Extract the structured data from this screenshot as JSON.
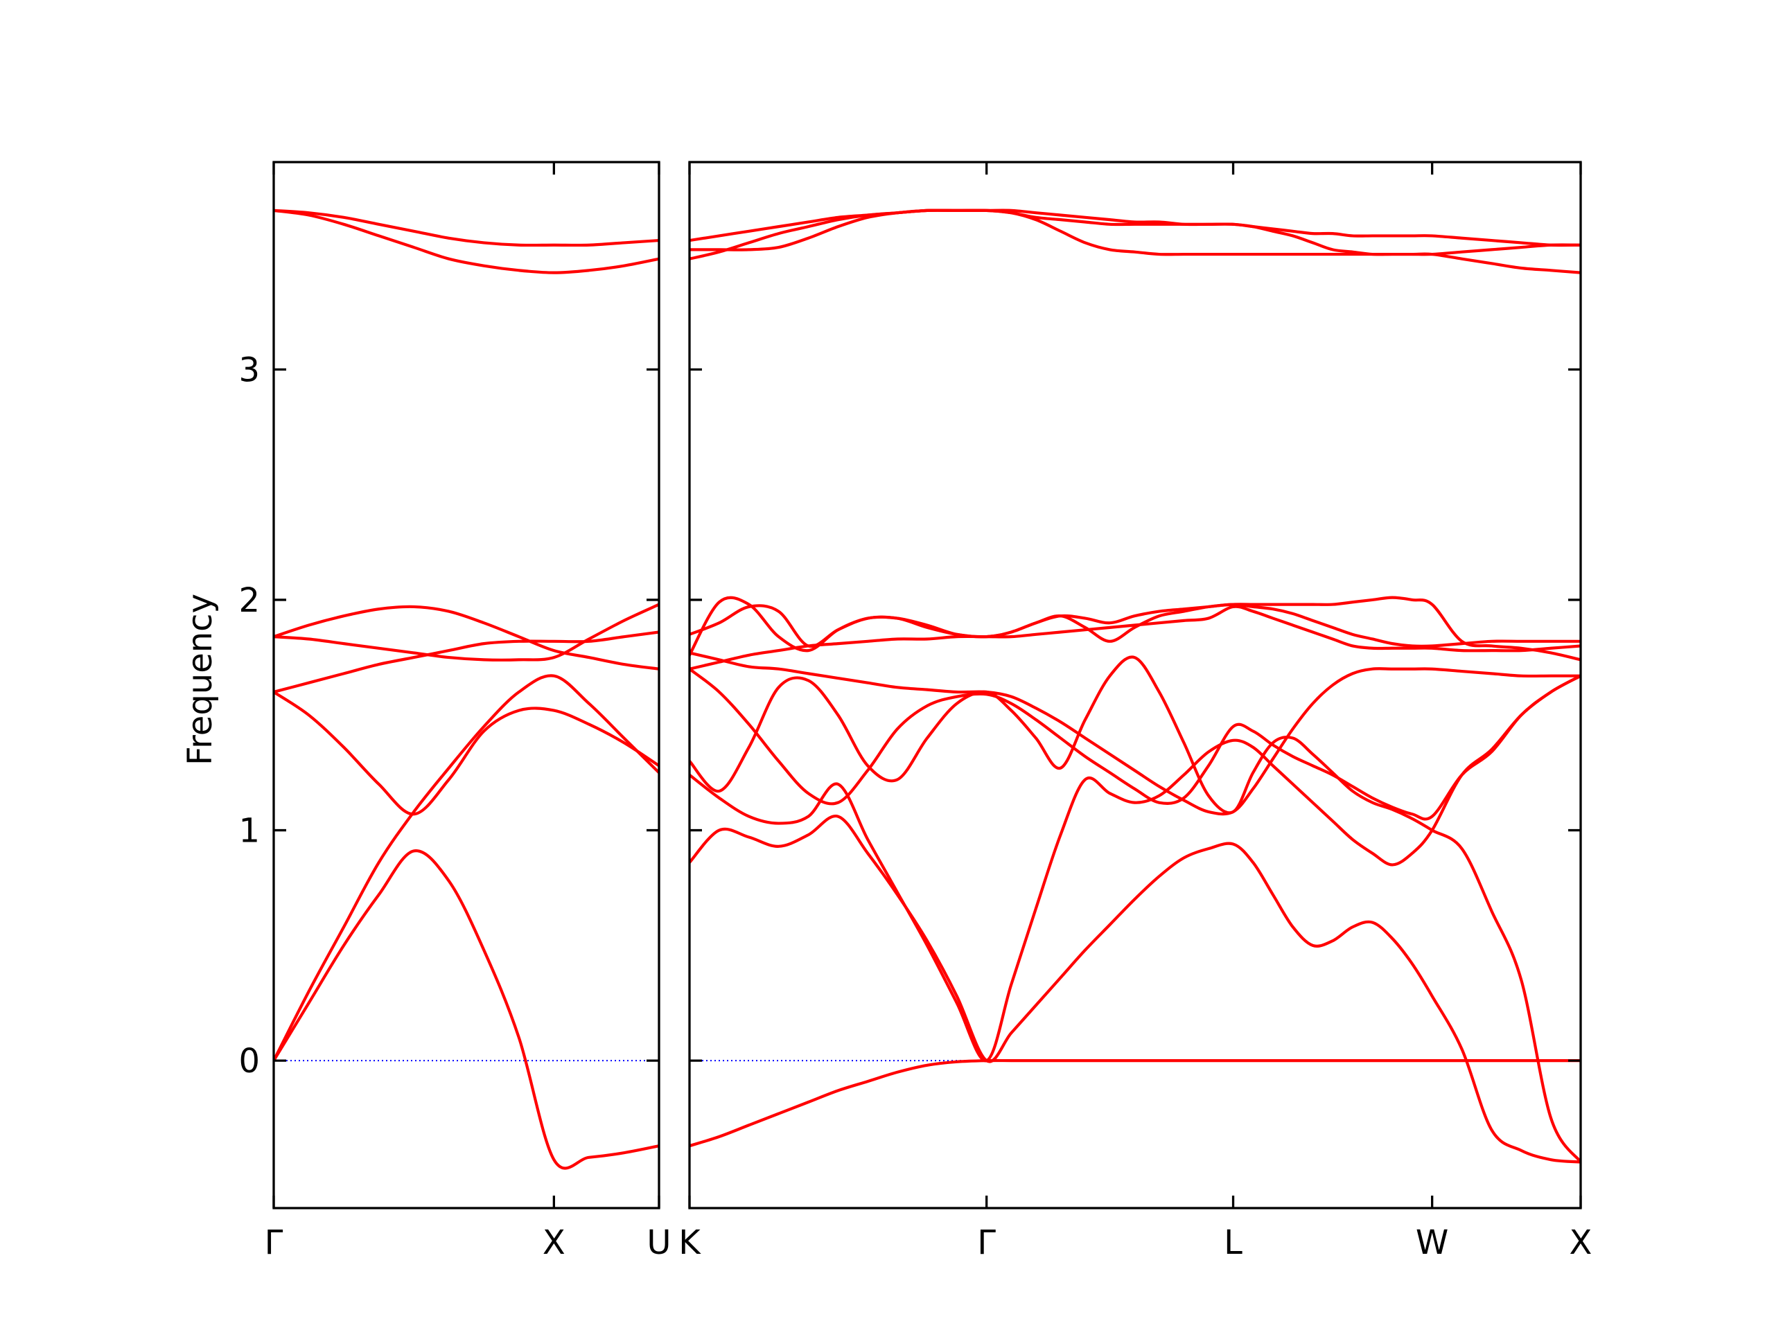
{
  "chart_data": {
    "type": "line",
    "title": "",
    "xlabel": "",
    "ylabel": "Frequency",
    "ylim": [
      -0.64,
      3.9
    ],
    "yticks": [
      0,
      1,
      2,
      3
    ],
    "ytick_labels": [
      "0",
      "1",
      "2",
      "3"
    ],
    "grid": false,
    "colors": {
      "bands": "#ff0000",
      "zero_line": "#0000ff",
      "axes": "#000000"
    },
    "panels": [
      {
        "name": "panel-1",
        "xlim": [
          0,
          1.375
        ],
        "xticks": [
          0,
          1.0,
          1.375
        ],
        "xtick_labels": [
          "Γ",
          "X",
          "U"
        ],
        "x": [
          0,
          0.125,
          0.25,
          0.375,
          0.5,
          0.625,
          0.75,
          0.875,
          1.0,
          1.125,
          1.25,
          1.375
        ],
        "series": [
          {
            "values": [
              0.0,
              0.25,
              0.5,
              0.72,
              0.91,
              0.78,
              0.48,
              0.1,
              -0.43,
              -0.42,
              -0.4,
              -0.37
            ]
          },
          {
            "values": [
              0.0,
              0.3,
              0.58,
              0.86,
              1.08,
              1.27,
              1.45,
              1.6,
              1.67,
              1.55,
              1.4,
              1.25
            ]
          },
          {
            "values": [
              1.6,
              1.5,
              1.36,
              1.2,
              1.07,
              1.22,
              1.43,
              1.52,
              1.52,
              1.46,
              1.38,
              1.28
            ]
          },
          {
            "values": [
              1.6,
              1.64,
              1.68,
              1.72,
              1.75,
              1.78,
              1.81,
              1.82,
              1.82,
              1.82,
              1.84,
              1.86
            ]
          },
          {
            "values": [
              1.84,
              1.83,
              1.81,
              1.79,
              1.77,
              1.75,
              1.74,
              1.74,
              1.75,
              1.83,
              1.91,
              1.98
            ]
          },
          {
            "values": [
              1.84,
              1.89,
              1.93,
              1.96,
              1.97,
              1.95,
              1.9,
              1.84,
              1.78,
              1.75,
              1.72,
              1.7
            ]
          },
          {
            "values": [
              3.69,
              3.67,
              3.63,
              3.58,
              3.53,
              3.48,
              3.45,
              3.43,
              3.42,
              3.43,
              3.45,
              3.48
            ]
          },
          {
            "values": [
              3.69,
              3.68,
              3.66,
              3.63,
              3.6,
              3.57,
              3.55,
              3.54,
              3.54,
              3.54,
              3.55,
              3.56
            ]
          }
        ]
      },
      {
        "name": "panel-2",
        "xlim": [
          0,
          3.18
        ],
        "xticks": [
          0,
          1.06,
          1.94,
          2.65,
          3.18
        ],
        "xtick_labels": [
          "K",
          "Γ",
          "L",
          "W",
          "X"
        ],
        "x": [
          0,
          0.106,
          0.212,
          0.318,
          0.424,
          0.53,
          0.636,
          0.742,
          0.848,
          0.954,
          1.06,
          1.148,
          1.236,
          1.324,
          1.412,
          1.5,
          1.588,
          1.676,
          1.764,
          1.852,
          1.94,
          2.011,
          2.082,
          2.153,
          2.224,
          2.295,
          2.366,
          2.437,
          2.508,
          2.579,
          2.65,
          2.756,
          2.862,
          2.968,
          3.074,
          3.18
        ],
        "series": [
          {
            "values": [
              -0.37,
              -0.33,
              -0.28,
              -0.23,
              -0.18,
              -0.13,
              -0.09,
              -0.05,
              -0.02,
              -0.005,
              0.0,
              0.0,
              0.0,
              0.0,
              0.0,
              0.0,
              0.0,
              0.0,
              0.0,
              0.0,
              0.0,
              0.0,
              0.0,
              0.0,
              0.0,
              0.0,
              0.0,
              0.0,
              0.0,
              0.0,
              0.0,
              0.0,
              0.0,
              0.0,
              0.0,
              0.0
            ]
          },
          {
            "values": [
              0.86,
              1.0,
              0.97,
              0.93,
              0.98,
              1.06,
              0.9,
              0.72,
              0.52,
              0.28,
              0.0,
              0.12,
              0.24,
              0.36,
              0.48,
              0.59,
              0.7,
              0.8,
              0.88,
              0.92,
              0.94,
              0.86,
              0.72,
              0.58,
              0.5,
              0.52,
              0.58,
              0.6,
              0.53,
              0.42,
              0.28,
              0.05,
              -0.3,
              -0.39,
              -0.43,
              -0.44
            ]
          },
          {
            "values": [
              1.24,
              1.14,
              1.06,
              1.03,
              1.06,
              1.2,
              0.96,
              0.73,
              0.5,
              0.25,
              0.0,
              0.33,
              0.66,
              0.98,
              1.22,
              1.16,
              1.12,
              1.15,
              1.24,
              1.34,
              1.39,
              1.36,
              1.28,
              1.2,
              1.12,
              1.04,
              0.96,
              0.9,
              0.85,
              0.9,
              1.0,
              1.24,
              1.35,
              1.5,
              1.6,
              1.67
            ]
          },
          {
            "values": [
              1.3,
              1.17,
              1.36,
              1.62,
              1.65,
              1.5,
              1.28,
              1.22,
              1.4,
              1.55,
              1.6,
              1.52,
              1.4,
              1.27,
              1.48,
              1.67,
              1.75,
              1.6,
              1.38,
              1.15,
              1.08,
              1.25,
              1.38,
              1.4,
              1.33,
              1.25,
              1.17,
              1.12,
              1.09,
              1.05,
              1.0,
              0.92,
              0.65,
              0.35,
              -0.25,
              -0.44
            ]
          },
          {
            "values": [
              1.7,
              1.6,
              1.46,
              1.3,
              1.16,
              1.12,
              1.26,
              1.44,
              1.54,
              1.58,
              1.59,
              1.55,
              1.48,
              1.4,
              1.32,
              1.25,
              1.18,
              1.12,
              1.14,
              1.28,
              1.45,
              1.43,
              1.37,
              1.32,
              1.28,
              1.24,
              1.19,
              1.14,
              1.1,
              1.07,
              1.06,
              1.24,
              1.34,
              1.5,
              1.6,
              1.67
            ]
          },
          {
            "values": [
              1.77,
              1.74,
              1.71,
              1.7,
              1.68,
              1.66,
              1.64,
              1.62,
              1.61,
              1.6,
              1.6,
              1.58,
              1.53,
              1.47,
              1.4,
              1.33,
              1.26,
              1.19,
              1.13,
              1.08,
              1.08,
              1.18,
              1.31,
              1.44,
              1.55,
              1.63,
              1.68,
              1.7,
              1.7,
              1.7,
              1.7,
              1.69,
              1.68,
              1.67,
              1.67,
              1.67
            ]
          },
          {
            "values": [
              1.7,
              1.73,
              1.76,
              1.78,
              1.8,
              1.81,
              1.82,
              1.83,
              1.83,
              1.84,
              1.84,
              1.84,
              1.85,
              1.86,
              1.87,
              1.88,
              1.89,
              1.9,
              1.91,
              1.92,
              1.97,
              1.95,
              1.92,
              1.89,
              1.86,
              1.83,
              1.8,
              1.79,
              1.79,
              1.79,
              1.79,
              1.78,
              1.78,
              1.78,
              1.79,
              1.8
            ]
          },
          {
            "values": [
              1.85,
              1.9,
              1.97,
              1.95,
              1.8,
              1.87,
              1.92,
              1.92,
              1.88,
              1.85,
              1.84,
              1.86,
              1.9,
              1.93,
              1.88,
              1.82,
              1.88,
              1.93,
              1.95,
              1.97,
              1.98,
              1.98,
              1.98,
              1.98,
              1.98,
              1.98,
              1.99,
              2.0,
              2.01,
              2.0,
              1.98,
              1.82,
              1.8,
              1.79,
              1.77,
              1.74
            ]
          },
          {
            "values": [
              1.76,
              1.99,
              1.98,
              1.84,
              1.78,
              1.87,
              1.92,
              1.92,
              1.89,
              1.85,
              1.84,
              1.86,
              1.9,
              1.93,
              1.92,
              1.9,
              1.93,
              1.95,
              1.96,
              1.97,
              1.98,
              1.97,
              1.96,
              1.94,
              1.91,
              1.88,
              1.85,
              1.83,
              1.81,
              1.8,
              1.8,
              1.81,
              1.82,
              1.82,
              1.82,
              1.82
            ]
          },
          {
            "values": [
              3.48,
              3.51,
              3.55,
              3.59,
              3.62,
              3.65,
              3.67,
              3.68,
              3.69,
              3.69,
              3.69,
              3.68,
              3.65,
              3.6,
              3.55,
              3.52,
              3.51,
              3.5,
              3.5,
              3.5,
              3.5,
              3.5,
              3.5,
              3.5,
              3.5,
              3.5,
              3.5,
              3.5,
              3.5,
              3.5,
              3.5,
              3.48,
              3.46,
              3.44,
              3.43,
              3.42
            ]
          },
          {
            "values": [
              3.52,
              3.52,
              3.52,
              3.53,
              3.57,
              3.62,
              3.66,
              3.68,
              3.69,
              3.69,
              3.69,
              3.68,
              3.66,
              3.65,
              3.64,
              3.63,
              3.63,
              3.63,
              3.63,
              3.63,
              3.63,
              3.62,
              3.6,
              3.58,
              3.55,
              3.52,
              3.51,
              3.5,
              3.5,
              3.5,
              3.5,
              3.51,
              3.52,
              3.53,
              3.54,
              3.54
            ]
          },
          {
            "values": [
              3.56,
              3.58,
              3.6,
              3.62,
              3.64,
              3.66,
              3.67,
              3.68,
              3.69,
              3.69,
              3.69,
              3.69,
              3.68,
              3.67,
              3.66,
              3.65,
              3.64,
              3.64,
              3.63,
              3.63,
              3.63,
              3.62,
              3.61,
              3.6,
              3.59,
              3.59,
              3.58,
              3.58,
              3.58,
              3.58,
              3.58,
              3.57,
              3.56,
              3.55,
              3.54,
              3.54
            ]
          }
        ]
      }
    ]
  }
}
